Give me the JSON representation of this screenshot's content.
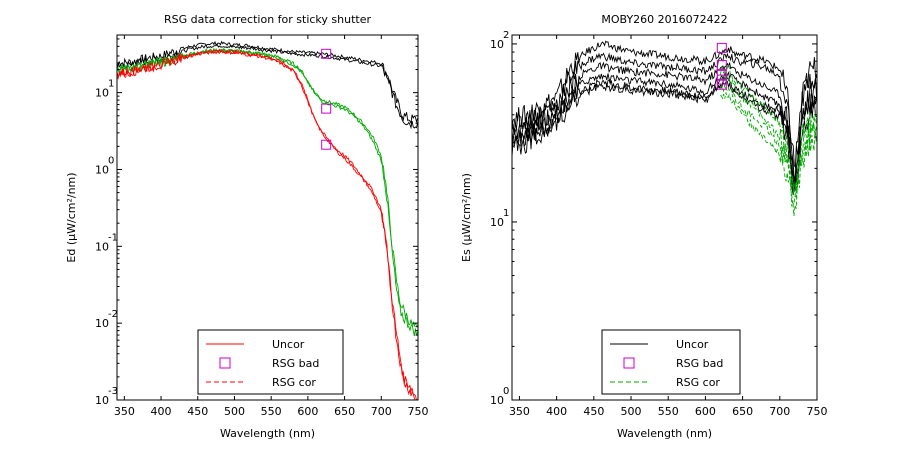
{
  "chart_data": [
    {
      "type": "line",
      "title": "RSG data correction for sticky shutter",
      "xlabel": "Wavelength (nm)",
      "ylabel": "Ed (µW/cm²/nm)",
      "xlim": [
        340,
        750
      ],
      "ylim_log10": [
        -3,
        1.75
      ],
      "y_scale": "log",
      "x_ticks": [
        350,
        400,
        450,
        500,
        550,
        600,
        650,
        700,
        750
      ],
      "y_ticks": [
        {
          "base": "10",
          "exp": "-3",
          "value": -3
        },
        {
          "base": "10",
          "exp": "-2",
          "value": -2
        },
        {
          "base": "10",
          "exp": "-1",
          "value": -1
        },
        {
          "base": "10",
          "exp": "0",
          "value": 0
        },
        {
          "base": "10",
          "exp": "1",
          "value": 1
        }
      ],
      "legend_position": "bottom-center",
      "legend": [
        {
          "label": "Uncor",
          "style": "solid",
          "color": "#ff0000"
        },
        {
          "label": "RSG bad",
          "style": "marker",
          "color": "#cc00cc"
        },
        {
          "label": "RSG cor",
          "style": "dashed",
          "color": "#ff0000"
        }
      ],
      "series": [
        {
          "style": "solid",
          "color": "#000000",
          "x": [
            340,
            360,
            380,
            400,
            420,
            440,
            460,
            480,
            500,
            520,
            540,
            560,
            580,
            600,
            620,
            640,
            660,
            680,
            700,
            710,
            720,
            730,
            740,
            750
          ],
          "y": [
            24,
            25,
            28,
            30,
            35,
            40,
            43,
            44,
            42,
            41,
            38,
            36,
            34,
            33,
            32,
            30,
            28,
            26,
            24,
            15,
            8,
            5,
            4.5,
            4.5
          ]
        },
        {
          "style": "solid",
          "color": "#000000",
          "x": [
            340,
            360,
            380,
            400,
            420,
            440,
            460,
            480,
            500,
            520,
            540,
            560,
            580,
            600,
            620,
            640,
            660,
            680,
            700,
            710,
            720,
            730,
            740,
            750
          ],
          "y": [
            22,
            23,
            26,
            28,
            32,
            37,
            40,
            41,
            39,
            38,
            36,
            34,
            32,
            31,
            30,
            28,
            26,
            24,
            22,
            14,
            7,
            4.5,
            4,
            4
          ]
        },
        {
          "style": "solid",
          "color": "#00aa00",
          "x": [
            340,
            360,
            380,
            400,
            420,
            440,
            460,
            480,
            500,
            520,
            540,
            560,
            580,
            590,
            600,
            610,
            620,
            630,
            640,
            650,
            660,
            670,
            680,
            690,
            700,
            705,
            710,
            715,
            720,
            725,
            730,
            740,
            750
          ],
          "y": [
            20,
            21,
            23,
            25,
            28,
            32,
            35,
            36,
            35,
            34,
            32,
            29,
            24,
            20,
            14,
            10,
            8,
            7.5,
            7,
            6.5,
            5.5,
            4.5,
            3.5,
            2.5,
            1.5,
            0.8,
            0.3,
            0.1,
            0.04,
            0.02,
            0.015,
            0.01,
            0.008
          ]
        },
        {
          "style": "solid",
          "color": "#00aa00",
          "x": [
            340,
            360,
            380,
            400,
            420,
            440,
            460,
            480,
            500,
            520,
            540,
            560,
            580,
            590,
            600,
            610,
            620,
            630,
            640,
            650,
            660,
            670,
            680,
            690,
            700,
            705,
            710,
            715,
            720,
            725,
            730,
            740,
            750
          ],
          "y": [
            19.5,
            20.5,
            22.5,
            24.5,
            27.5,
            31,
            34,
            35,
            34,
            33,
            31,
            28,
            23,
            19,
            13.5,
            9.5,
            7.6,
            7.1,
            6.6,
            6.1,
            5.2,
            4.2,
            3.2,
            2.2,
            1.3,
            0.7,
            0.25,
            0.08,
            0.03,
            0.015,
            0.012,
            0.009,
            0.007
          ]
        },
        {
          "style": "solid",
          "color": "#ff0000",
          "x": [
            340,
            360,
            380,
            400,
            420,
            440,
            460,
            480,
            500,
            520,
            540,
            560,
            580,
            590,
            600,
            610,
            620,
            630,
            640,
            650,
            660,
            670,
            680,
            690,
            700,
            705,
            710,
            715,
            720,
            725,
            730,
            740,
            745,
            750
          ],
          "y": [
            18,
            19,
            21,
            23,
            27,
            31,
            34,
            35,
            34,
            32,
            30,
            26,
            20,
            14,
            8,
            4.5,
            3,
            2.3,
            1.8,
            1.5,
            1.2,
            0.9,
            0.7,
            0.5,
            0.3,
            0.15,
            0.06,
            0.02,
            0.008,
            0.004,
            0.002,
            0.0015,
            0.0012,
            0.001
          ]
        },
        {
          "style": "solid",
          "color": "#ff0000",
          "x": [
            340,
            360,
            380,
            400,
            420,
            440,
            460,
            480,
            500,
            520,
            540,
            560,
            580,
            590,
            600,
            610,
            620,
            630,
            640,
            650,
            660,
            670,
            680,
            690,
            700,
            705,
            710,
            715,
            720,
            725,
            730,
            740,
            745,
            750
          ],
          "y": [
            17.5,
            18.5,
            20.5,
            22.5,
            26.5,
            30,
            33,
            34,
            33,
            31,
            29,
            25,
            19,
            13.5,
            7.6,
            4.3,
            2.9,
            2.2,
            1.7,
            1.4,
            1.1,
            0.85,
            0.65,
            0.45,
            0.27,
            0.13,
            0.05,
            0.018,
            0.007,
            0.0035,
            0.0018,
            0.0013,
            0.0011,
            0.0009
          ]
        }
      ],
      "markers": {
        "x": [
          625,
          625,
          625
        ],
        "y": [
          32,
          6.2,
          2.1
        ],
        "color": "#cc00cc"
      }
    },
    {
      "type": "line",
      "title": "MOBY260  2016072422",
      "xlabel": "Wavelength (nm)",
      "ylabel": "Es (µW/cm²/nm)",
      "xlim": [
        340,
        750
      ],
      "ylim_log10": [
        0,
        2.05
      ],
      "y_scale": "log",
      "x_ticks": [
        350,
        400,
        450,
        500,
        550,
        600,
        650,
        700,
        750
      ],
      "y_ticks": [
        {
          "base": "10",
          "exp": "0",
          "value": 0
        },
        {
          "base": "10",
          "exp": "1",
          "value": 1
        },
        {
          "base": "10",
          "exp": "2",
          "value": 2
        }
      ],
      "legend_position": "bottom-center",
      "legend": [
        {
          "label": "Uncor",
          "style": "solid",
          "color": "#000000"
        },
        {
          "label": "RSG bad",
          "style": "marker",
          "color": "#cc00cc"
        },
        {
          "label": "RSG cor",
          "style": "dashed",
          "color": "#00aa00"
        }
      ],
      "series": [
        {
          "style": "solid",
          "color": "#000000",
          "x": [
            340,
            360,
            380,
            400,
            420,
            440,
            460,
            480,
            500,
            520,
            540,
            560,
            580,
            600,
            620,
            630,
            640,
            660,
            680,
            700,
            710,
            720,
            730,
            740,
            750
          ],
          "y": [
            38,
            40,
            45,
            50,
            75,
            90,
            100,
            95,
            90,
            88,
            86,
            84,
            82,
            80,
            88,
            95,
            88,
            85,
            80,
            72,
            50,
            20,
            50,
            70,
            75
          ]
        },
        {
          "style": "solid",
          "color": "#000000",
          "x": [
            340,
            360,
            380,
            400,
            420,
            440,
            460,
            480,
            500,
            520,
            540,
            560,
            580,
            600,
            620,
            630,
            640,
            660,
            680,
            700,
            710,
            720,
            730,
            740,
            750
          ],
          "y": [
            35,
            37,
            42,
            46,
            68,
            80,
            86,
            82,
            78,
            76,
            75,
            74,
            72,
            70,
            80,
            88,
            80,
            78,
            74,
            66,
            46,
            18,
            46,
            64,
            68
          ]
        },
        {
          "style": "solid",
          "color": "#000000",
          "x": [
            340,
            360,
            380,
            400,
            420,
            440,
            460,
            480,
            500,
            520,
            540,
            560,
            580,
            600,
            620,
            630,
            640,
            660,
            680,
            700,
            710,
            720,
            730,
            740,
            750
          ],
          "y": [
            32,
            34,
            39,
            42,
            60,
            70,
            75,
            72,
            70,
            69,
            68,
            66,
            64,
            62,
            72,
            78,
            70,
            64,
            58,
            52,
            38,
            16,
            40,
            52,
            56
          ]
        },
        {
          "style": "solid",
          "color": "#000000",
          "x": [
            340,
            360,
            380,
            400,
            420,
            440,
            460,
            480,
            500,
            520,
            540,
            560,
            580,
            600,
            620,
            630,
            640,
            660,
            680,
            700,
            710,
            720,
            730,
            740,
            750
          ],
          "y": [
            30,
            32,
            36,
            40,
            55,
            62,
            66,
            64,
            62,
            61,
            60,
            58,
            56,
            54,
            64,
            68,
            62,
            56,
            50,
            45,
            34,
            15,
            36,
            46,
            50
          ]
        },
        {
          "style": "solid",
          "color": "#000000",
          "x": [
            340,
            360,
            380,
            400,
            420,
            440,
            460,
            480,
            500,
            520,
            540,
            560,
            580,
            600,
            620,
            630,
            640,
            660,
            680,
            700,
            710,
            720,
            730,
            740,
            750
          ],
          "y": [
            28,
            30,
            34,
            38,
            50,
            57,
            61,
            59,
            57,
            56,
            55,
            54,
            52,
            50,
            60,
            63,
            56,
            50,
            45,
            42,
            32,
            14,
            34,
            43,
            47
          ]
        },
        {
          "style": "solid",
          "color": "#000000",
          "x": [
            340,
            360,
            380,
            400,
            420,
            440,
            460,
            480,
            500,
            520,
            540,
            560,
            580,
            600,
            620,
            630,
            640,
            660,
            680,
            700,
            710,
            720,
            730,
            740,
            750
          ],
          "y": [
            26,
            28,
            32,
            36,
            48,
            54,
            58,
            56,
            55,
            54,
            53,
            52,
            50,
            48,
            58,
            61,
            53,
            47,
            42,
            39,
            30,
            13,
            32,
            40,
            44
          ]
        },
        {
          "style": "dashed",
          "color": "#00aa00",
          "x": [
            620,
            630,
            640,
            650,
            660,
            670,
            680,
            690,
            700,
            710,
            715,
            720,
            725,
            730,
            740,
            750
          ],
          "y": [
            70,
            74,
            62,
            56,
            52,
            48,
            44,
            40,
            35,
            26,
            20,
            14,
            22,
            30,
            36,
            40
          ]
        },
        {
          "style": "dashed",
          "color": "#00aa00",
          "x": [
            620,
            630,
            640,
            650,
            660,
            670,
            680,
            690,
            700,
            710,
            715,
            720,
            725,
            730,
            740,
            750
          ],
          "y": [
            62,
            66,
            56,
            50,
            46,
            42,
            38,
            34,
            30,
            23,
            18,
            13,
            20,
            27,
            32,
            36
          ]
        },
        {
          "style": "dashed",
          "color": "#00aa00",
          "x": [
            620,
            630,
            640,
            650,
            660,
            670,
            680,
            690,
            700,
            710,
            715,
            720,
            725,
            730,
            740,
            750
          ],
          "y": [
            56,
            58,
            50,
            44,
            40,
            37,
            34,
            30,
            27,
            21,
            16,
            12,
            18,
            24,
            29,
            32
          ]
        },
        {
          "style": "dashed",
          "color": "#00aa00",
          "x": [
            620,
            630,
            640,
            650,
            660,
            670,
            680,
            690,
            700,
            710,
            715,
            720,
            725,
            730,
            740,
            750
          ],
          "y": [
            50,
            53,
            45,
            40,
            36,
            33,
            30,
            27,
            24,
            19,
            15,
            11,
            16,
            22,
            26,
            29
          ]
        }
      ],
      "markers": {
        "x": [
          622,
          622,
          622,
          622,
          622
        ],
        "y": [
          95,
          76,
          67,
          63,
          59
        ],
        "color": "#cc00cc"
      }
    }
  ]
}
